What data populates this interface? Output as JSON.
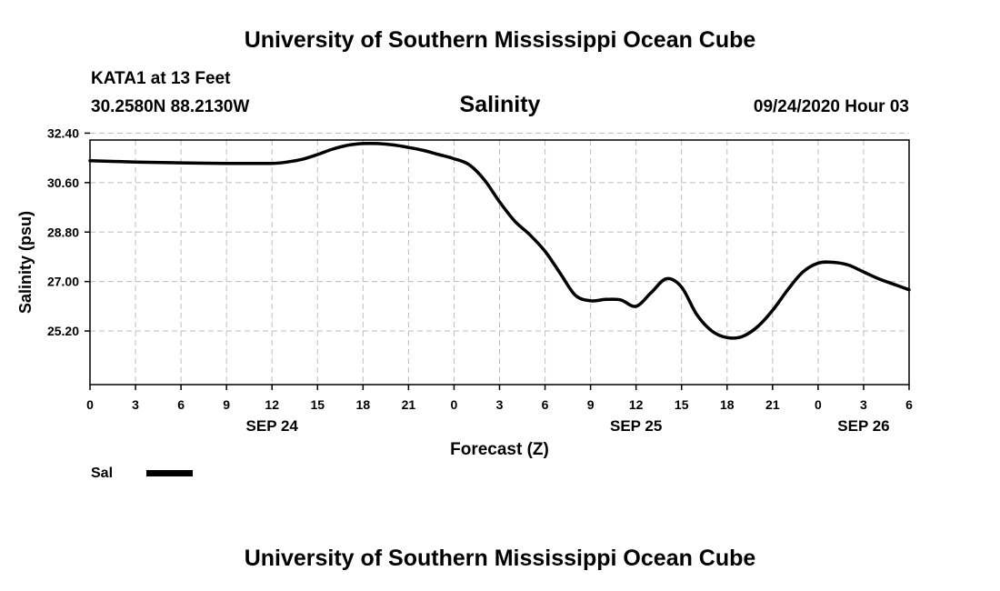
{
  "page": {
    "top_title": "University of Southern Mississippi Ocean Cube",
    "station_line": "KATA1 at 13 Feet",
    "coords_line": "30.2580N 88.2130W",
    "chart_title": "Salinity",
    "date_line": "09/24/2020 Hour 03",
    "bottom_title": "University of Southern Mississippi Ocean Cube",
    "legend_label": "Sal"
  },
  "chart_data": {
    "type": "line",
    "ylabel": "Salinity (psu)",
    "xlabel": "Forecast (Z)",
    "ylim": [
      23.25,
      32.15
    ],
    "yticks": [
      "32.40",
      "30.60",
      "28.80",
      "27.00",
      "25.20"
    ],
    "ytick_values": [
      32.4,
      30.6,
      28.8,
      27.0,
      25.2
    ],
    "xlim": [
      0,
      54
    ],
    "xticks": [
      0,
      3,
      6,
      9,
      12,
      15,
      18,
      21,
      24,
      27,
      30,
      33,
      36,
      39,
      42,
      45,
      48,
      51,
      54
    ],
    "xtick_labels": [
      "0",
      "3",
      "6",
      "9",
      "12",
      "15",
      "18",
      "21",
      "0",
      "3",
      "6",
      "9",
      "12",
      "15",
      "18",
      "21",
      "0",
      "3",
      "6"
    ],
    "day_labels": [
      {
        "label": "SEP 24",
        "x": 12
      },
      {
        "label": "SEP 25",
        "x": 36
      },
      {
        "label": "SEP 26",
        "x": 51
      }
    ],
    "grid": true,
    "series": [
      {
        "name": "Sal",
        "color": "#000000",
        "x": [
          0,
          3,
          6,
          9,
          12,
          13,
          14,
          15,
          16,
          17,
          18,
          19,
          20,
          21,
          22,
          23,
          24,
          25,
          26,
          27,
          28,
          29,
          30,
          31,
          32,
          33,
          34,
          35,
          36,
          37,
          38,
          39,
          40,
          41,
          42,
          43,
          44,
          45,
          46,
          47,
          48,
          49,
          50,
          51,
          52,
          53,
          54
        ],
        "values": [
          31.4,
          31.35,
          31.32,
          31.3,
          31.3,
          31.35,
          31.45,
          31.62,
          31.82,
          31.96,
          32.02,
          32.02,
          31.97,
          31.88,
          31.77,
          31.62,
          31.47,
          31.25,
          30.7,
          29.9,
          29.2,
          28.7,
          28.1,
          27.3,
          26.5,
          26.3,
          26.35,
          26.33,
          26.1,
          26.6,
          27.1,
          26.8,
          25.8,
          25.2,
          24.96,
          25.0,
          25.35,
          25.95,
          26.7,
          27.35,
          27.67,
          27.7,
          27.6,
          27.35,
          27.1,
          26.9,
          26.7
        ]
      }
    ]
  }
}
